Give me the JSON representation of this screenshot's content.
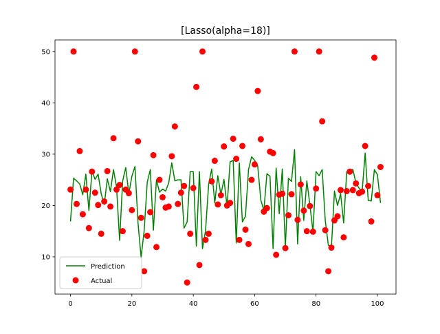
{
  "chart_data": {
    "type": "line",
    "title": "[Lasso(alpha=18)]",
    "xlabel": "",
    "ylabel": "",
    "xlim": [
      -5.05,
      106.05
    ],
    "ylim": [
      2.75,
      52.25
    ],
    "xticks": [
      0,
      20,
      40,
      60,
      80,
      100
    ],
    "yticks": [
      10,
      20,
      30,
      40,
      50
    ],
    "grid": false,
    "legend": "lower-left",
    "x": [
      0,
      1,
      2,
      3,
      4,
      5,
      6,
      7,
      8,
      9,
      10,
      11,
      12,
      13,
      14,
      15,
      16,
      17,
      18,
      19,
      20,
      21,
      22,
      23,
      24,
      25,
      26,
      27,
      28,
      29,
      30,
      31,
      32,
      33,
      34,
      35,
      36,
      37,
      38,
      39,
      40,
      41,
      42,
      43,
      44,
      45,
      46,
      47,
      48,
      49,
      50,
      51,
      52,
      53,
      54,
      55,
      56,
      57,
      58,
      59,
      60,
      61,
      62,
      63,
      64,
      65,
      66,
      67,
      68,
      69,
      70,
      71,
      72,
      73,
      74,
      75,
      76,
      77,
      78,
      79,
      80,
      81,
      82,
      83,
      84,
      85,
      86,
      87,
      88,
      89,
      90,
      91,
      92,
      93,
      94,
      95,
      96,
      97,
      98,
      99,
      100,
      101
    ],
    "series": [
      {
        "name": "Prediction",
        "kind": "line",
        "color": "#008000",
        "values": [
          16.9,
          25.3,
          24.8,
          24.2,
          22.1,
          26.1,
          19.0,
          26.7,
          25.1,
          26.1,
          22.3,
          20.2,
          25.2,
          22.7,
          27.0,
          23.6,
          13.2,
          24.8,
          27.4,
          22.3,
          25.7,
          27.6,
          16.6,
          9.9,
          15.1,
          24.5,
          27.0,
          15.2,
          25.0,
          22.6,
          23.2,
          22.8,
          24.4,
          28.3,
          24.8,
          25.0,
          25.0,
          15.6,
          16.8,
          26.6,
          26.6,
          12.1,
          26.6,
          11.6,
          15.1,
          24.1,
          27.1,
          20.5,
          25.8,
          22.1,
          25.1,
          19.8,
          28.5,
          28.8,
          12.7,
          28.3,
          16.8,
          17.9,
          27.0,
          29.5,
          28.8,
          27.7,
          21.1,
          19.0,
          26.2,
          25.7,
          11.6,
          27.3,
          18.4,
          27.1,
          11.9,
          25.3,
          24.7,
          30.9,
          12.5,
          25.6,
          17.1,
          24.8,
          20.1,
          14.9,
          26.6,
          25.8,
          27.0,
          17.1,
          12.3,
          11.8,
          22.8,
          20.0,
          22.3,
          16.6,
          26.6,
          27.0,
          27.0,
          24.4,
          23.4,
          22.6,
          30.2,
          21.0,
          20.9,
          27.0,
          26.0,
          20.5
        ]
      },
      {
        "name": "Actual",
        "kind": "scatter",
        "color": "#ff0000",
        "values": [
          23.1,
          50.0,
          20.3,
          30.6,
          18.3,
          23.1,
          15.6,
          26.6,
          22.5,
          20.1,
          14.5,
          20.8,
          26.7,
          19.8,
          33.1,
          23.1,
          24.0,
          15.0,
          23.1,
          22.4,
          19.1,
          50.0,
          32.5,
          17.6,
          7.2,
          14.1,
          18.7,
          29.8,
          11.9,
          25.0,
          21.6,
          19.6,
          19.8,
          29.6,
          35.4,
          20.3,
          22.5,
          23.8,
          5.0,
          14.5,
          23.4,
          43.1,
          8.4,
          50.0,
          13.3,
          14.5,
          24.7,
          28.7,
          20.2,
          22.0,
          31.5,
          20.0,
          20.5,
          33.0,
          29.1,
          13.3,
          31.6,
          15.3,
          12.5,
          25.0,
          28.0,
          42.3,
          32.9,
          18.8,
          19.5,
          30.5,
          30.2,
          10.4,
          22.1,
          22.3,
          11.7,
          18.1,
          22.2,
          50.0,
          17.2,
          24.1,
          19.0,
          15.0,
          19.9,
          14.9,
          23.3,
          50.0,
          36.4,
          15.2,
          7.2,
          11.8,
          17.1,
          17.9,
          23.0,
          13.8,
          22.8,
          26.6,
          23.0,
          24.3,
          22.4,
          22.7,
          31.6,
          23.8,
          16.9,
          48.8,
          22.0,
          27.5
        ]
      }
    ]
  }
}
